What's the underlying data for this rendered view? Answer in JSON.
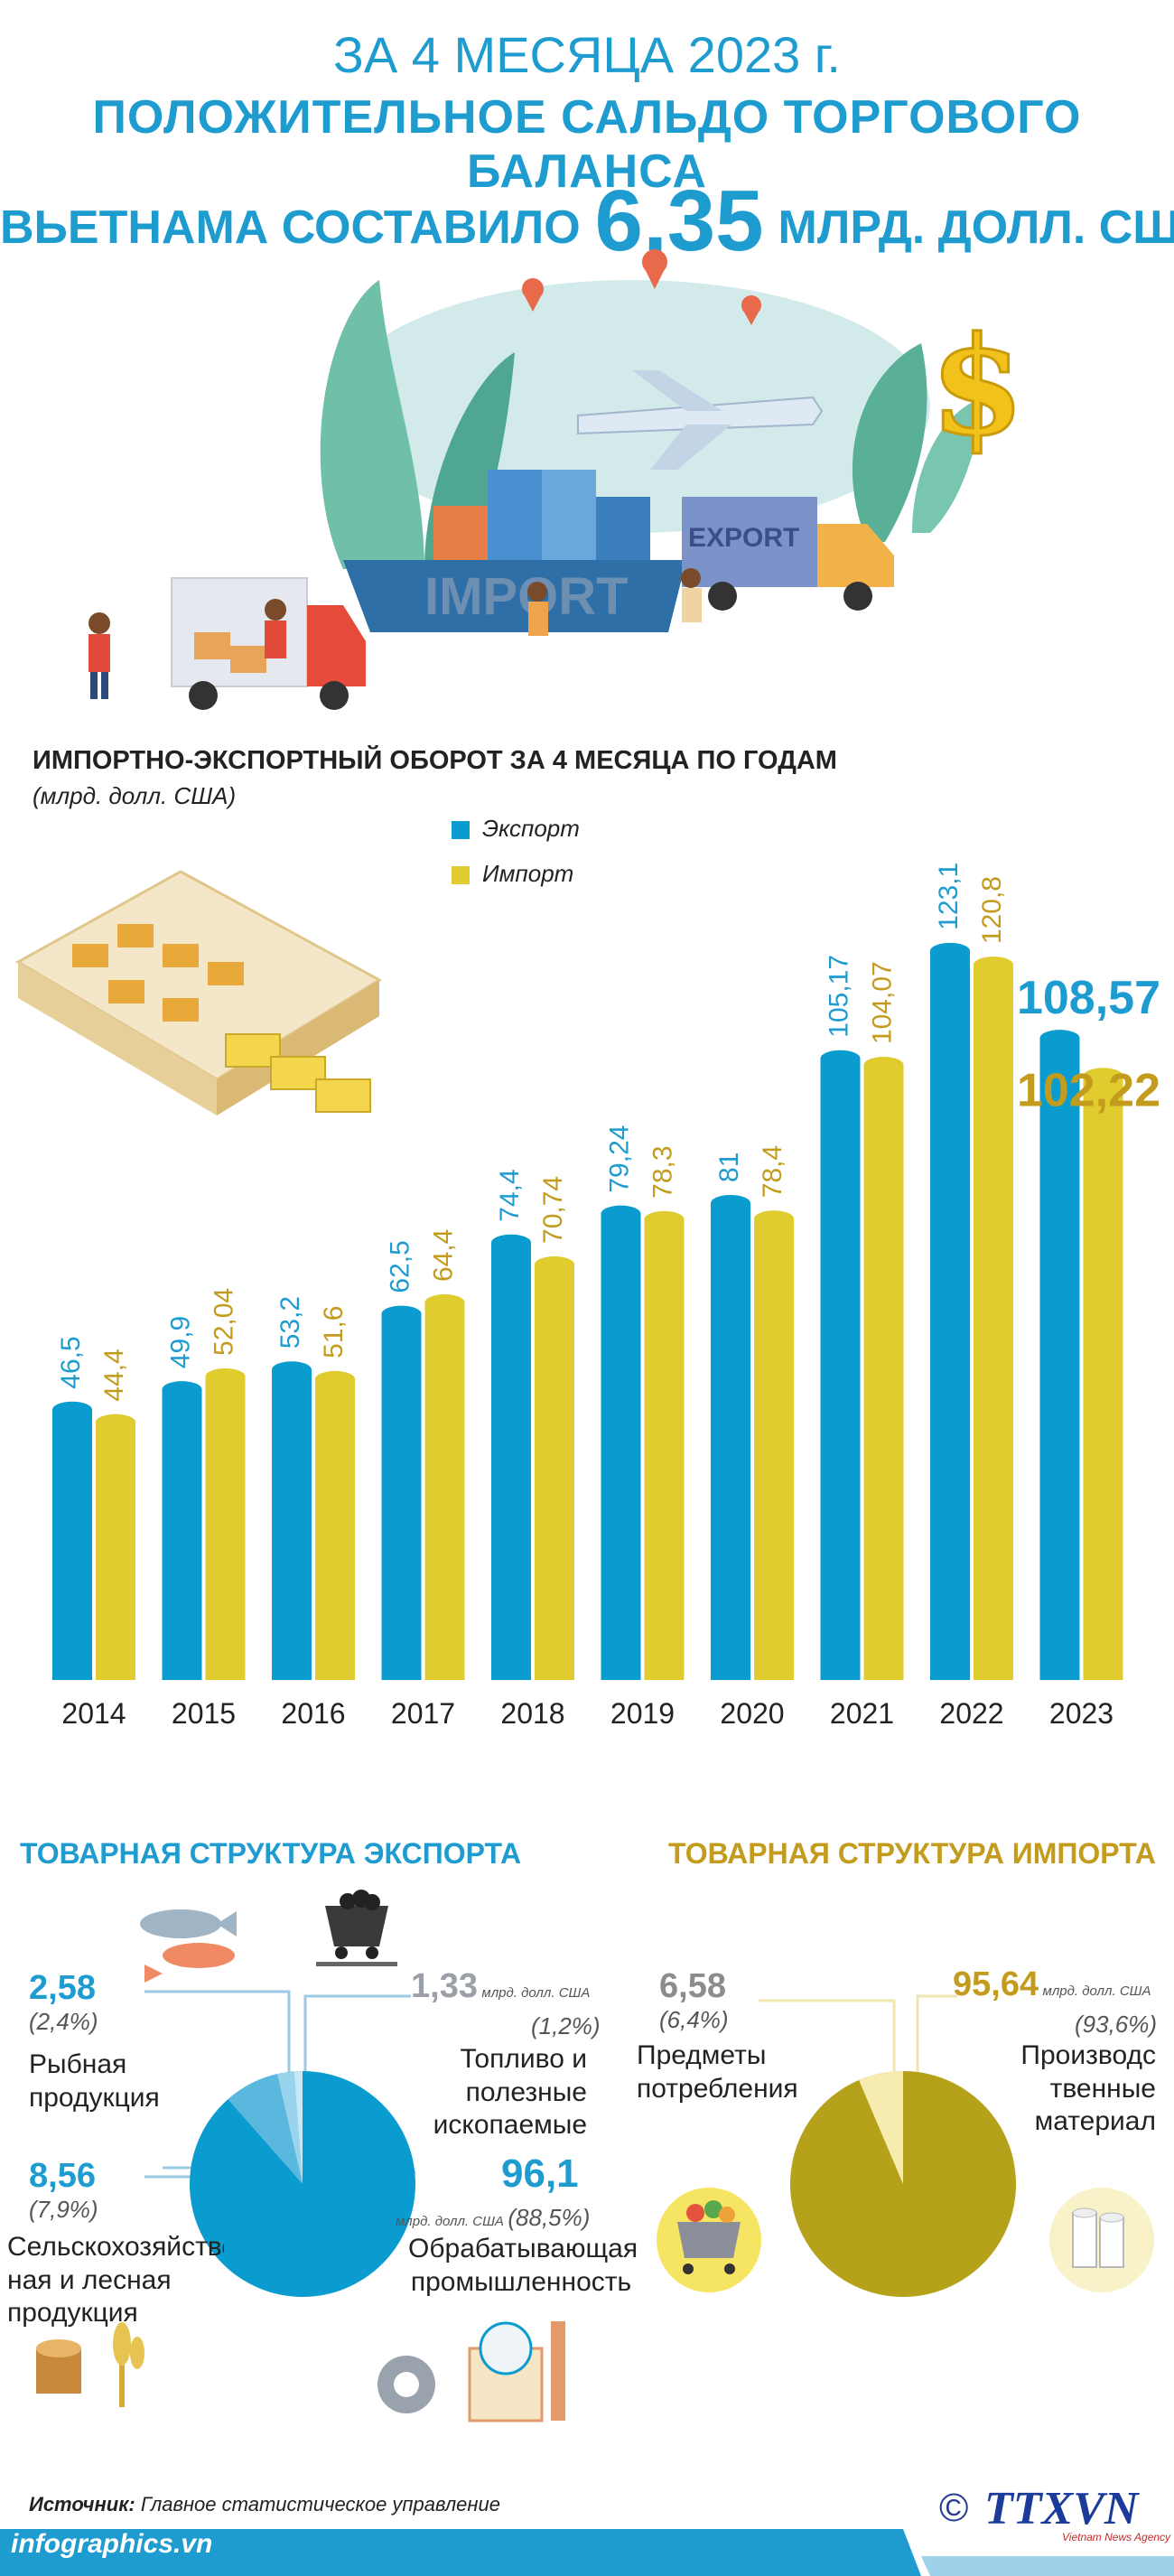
{
  "header": {
    "line1": "ЗА 4 МЕСЯЦА 2023 г.",
    "line2": "ПОЛОЖИТЕЛЬНОЕ САЛЬДО ТОРГОВОГО БАЛАНСА",
    "line3_left": "ВЬЕТНАМА СОСТАВИЛО",
    "line3_value": "6,35",
    "line3_right": "МЛРД. ДОЛЛ. США",
    "illustration_text_import": "IMPORT",
    "illustration_text_export": "EXPORT"
  },
  "chart_data": {
    "type": "bar",
    "title": "ИМПОРТНО-ЭКСПОРТНЫЙ ОБОРОТ ЗА 4 МЕСЯЦА ПО ГОДАМ",
    "subtitle": "(млрд. долл. США)",
    "categories": [
      "2014",
      "2015",
      "2016",
      "2017",
      "2018",
      "2019",
      "2020",
      "2021",
      "2022",
      "2023"
    ],
    "series": [
      {
        "name": "Экспорт",
        "color": "#0a9ccf",
        "values": [
          46.5,
          49.9,
          53.2,
          62.5,
          74.4,
          79.24,
          81,
          105.17,
          123.1,
          108.57
        ],
        "labels": [
          "46,5",
          "49,9",
          "53,2",
          "62,5",
          "74,4",
          "79,24",
          "81",
          "105,17",
          "123,1",
          "108,57"
        ]
      },
      {
        "name": "Импорт",
        "color": "#e0cc2e",
        "values": [
          44.4,
          52.04,
          51.6,
          64.4,
          70.74,
          78.3,
          78.4,
          104.07,
          120.8,
          102.22
        ],
        "labels": [
          "44,4",
          "52,04",
          "51,6",
          "64,4",
          "70,74",
          "78,3",
          "78,4",
          "104,07",
          "120,8",
          "102,22"
        ]
      }
    ],
    "ylim": [
      0,
      130
    ],
    "grid": false,
    "legend": "top-left"
  },
  "export_structure": {
    "title": "ТОВАРНАЯ СТРУКТУРА ЭКСПОРТА",
    "pie_color_main": "#0a9ccf",
    "items": [
      {
        "value": "2,58",
        "pct": "(2,4%)",
        "label_lines": [
          "Рыбная",
          "продукция"
        ]
      },
      {
        "value": "1,33",
        "unit": "млрд. долл. США",
        "pct": "(1,2%)",
        "label_lines": [
          "Топливо и",
          "полезные",
          "ископаемые"
        ]
      },
      {
        "value": "8,56",
        "pct": "(7,9%)",
        "label_lines": [
          "Сельскохозяйствен-",
          "ная и лесная",
          "продукция"
        ]
      },
      {
        "value": "96,1",
        "unit": "млрд. долл. США",
        "pct": "(88,5%)",
        "label_lines": [
          "Обрабатывающая",
          "промышленность"
        ]
      }
    ]
  },
  "import_structure": {
    "title": "ТОВАРНАЯ СТРУКТУРА ИМПОРТА",
    "pie_color_main": "#b5a11a",
    "items": [
      {
        "value": "6,58",
        "pct": "(6,4%)",
        "label_lines": [
          "Предметы",
          "потребления"
        ]
      },
      {
        "value": "95,64",
        "unit": "млрд. долл. США",
        "pct": "(93,6%)",
        "label_lines": [
          "Производс",
          "твенные",
          "материал"
        ]
      }
    ]
  },
  "footer": {
    "source_label": "Источник:",
    "source_text": "Главное статистическое управление",
    "site": "infographics.vn",
    "logo": "TTXVN",
    "logo_sub": "Vietnam News Agency",
    "copyright": "©"
  }
}
